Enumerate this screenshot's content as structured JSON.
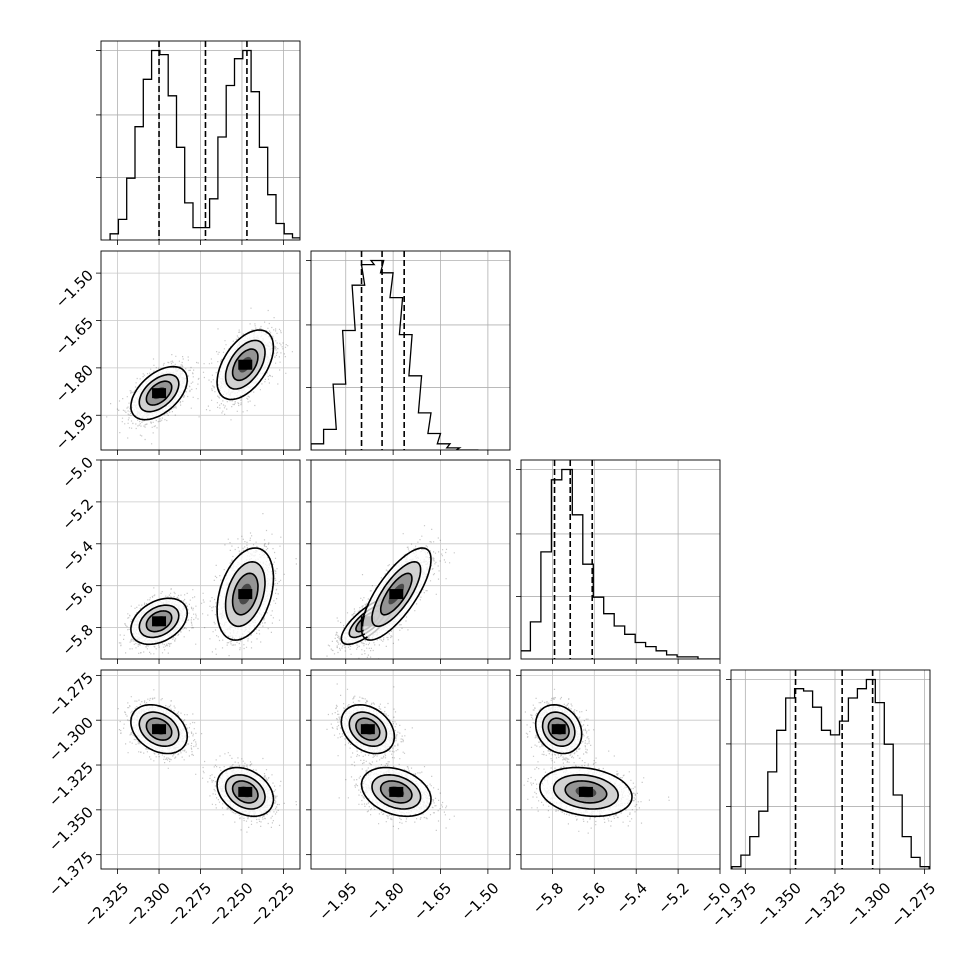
{
  "chart_data": {
    "type": "corner",
    "title": "",
    "grid": true,
    "parameters": [
      {
        "label": "",
        "range": [
          -2.335,
          -2.215
        ],
        "ticks": [
          -2.325,
          -2.3,
          -2.275,
          -2.25,
          -2.225
        ],
        "tick_labels": [
          "−2.325",
          "−2.300",
          "−2.275",
          "−2.250",
          "−2.225"
        ]
      },
      {
        "label": "",
        "range": [
          -2.06,
          -1.43
        ],
        "ticks": [
          -1.95,
          -1.8,
          -1.65,
          -1.5
        ],
        "tick_labels": [
          "−1.95",
          "−1.80",
          "−1.65",
          "−1.50"
        ]
      },
      {
        "label": "",
        "range": [
          -5.95,
          -5.0
        ],
        "ticks": [
          -5.8,
          -5.6,
          -5.4,
          -5.2,
          -5.0
        ],
        "tick_labels": [
          "−5.8",
          "−5.6",
          "−5.4",
          "−5.2",
          "−5.0"
        ]
      },
      {
        "label": "",
        "range": [
          -1.383,
          -1.272
        ],
        "ticks": [
          -1.375,
          -1.35,
          -1.325,
          -1.3,
          -1.275
        ],
        "tick_labels": [
          "−1.375",
          "−1.350",
          "−1.325",
          "−1.300",
          "−1.275"
        ]
      }
    ],
    "quantiles": [
      [
        -2.3,
        -2.272,
        -2.247
      ],
      [
        -1.9,
        -1.835,
        -1.765
      ],
      [
        -5.79,
        -5.715,
        -5.61
      ],
      [
        -1.347,
        -1.321,
        -1.304
      ]
    ],
    "histograms": [
      {
        "bin_centers": [
          -2.327,
          -2.322,
          -2.317,
          -2.312,
          -2.307,
          -2.302,
          -2.297,
          -2.292,
          -2.287,
          -2.282,
          -2.277,
          -2.272,
          -2.267,
          -2.262,
          -2.257,
          -2.252,
          -2.247,
          -2.242,
          -2.237,
          -2.232,
          -2.227,
          -2.222,
          -2.217
        ],
        "counts": [
          3,
          10,
          30,
          55,
          78,
          92,
          90,
          70,
          45,
          18,
          6,
          6,
          20,
          50,
          75,
          88,
          92,
          72,
          45,
          22,
          8,
          3,
          1
        ]
      },
      {
        "bin_centers": [
          -2.04,
          -2.0,
          -1.97,
          -1.94,
          -1.91,
          -1.88,
          -1.85,
          -1.82,
          -1.79,
          -1.76,
          -1.73,
          -1.7,
          -1.67,
          -1.64,
          -1.61,
          -1.58,
          -1.55
        ],
        "counts": [
          3,
          10,
          32,
          58,
          80,
          90,
          92,
          86,
          74,
          56,
          36,
          18,
          8,
          3,
          1,
          0,
          0
        ]
      },
      {
        "bin_centers": [
          -5.93,
          -5.88,
          -5.83,
          -5.78,
          -5.73,
          -5.68,
          -5.63,
          -5.58,
          -5.53,
          -5.48,
          -5.43,
          -5.38,
          -5.33,
          -5.28,
          -5.23,
          -5.18,
          -5.13,
          -5.08,
          -5.03
        ],
        "counts": [
          4,
          18,
          52,
          87,
          92,
          70,
          46,
          30,
          22,
          16,
          12,
          8,
          6,
          4,
          2,
          1,
          1,
          0,
          0
        ]
      },
      {
        "bin_centers": [
          -1.38,
          -1.375,
          -1.37,
          -1.365,
          -1.36,
          -1.355,
          -1.35,
          -1.345,
          -1.34,
          -1.335,
          -1.33,
          -1.325,
          -1.32,
          -1.315,
          -1.31,
          -1.305,
          -1.3,
          -1.295,
          -1.29,
          -1.285,
          -1.28,
          -1.275
        ],
        "counts": [
          1,
          6,
          14,
          25,
          42,
          60,
          74,
          78,
          77,
          70,
          60,
          58,
          64,
          74,
          78,
          82,
          72,
          54,
          32,
          14,
          5,
          1
        ]
      }
    ],
    "clusters": [
      {
        "weight": 0.5,
        "mean": [
          -2.3,
          -1.88,
          -5.77,
          -1.305
        ],
        "std": [
          0.0085,
          0.042,
          0.055,
          0.0068
        ]
      },
      {
        "weight": 0.5,
        "mean": [
          -2.248,
          -1.79,
          -5.64,
          -1.34
        ],
        "std": [
          0.0085,
          0.055,
          0.11,
          0.0068
        ]
      }
    ],
    "correlations": {
      "0_1": 0.5,
      "0_2": 0.35,
      "1_2": 0.75,
      "0_3": -0.3,
      "1_3": -0.3,
      "2_3": -0.2
    }
  }
}
